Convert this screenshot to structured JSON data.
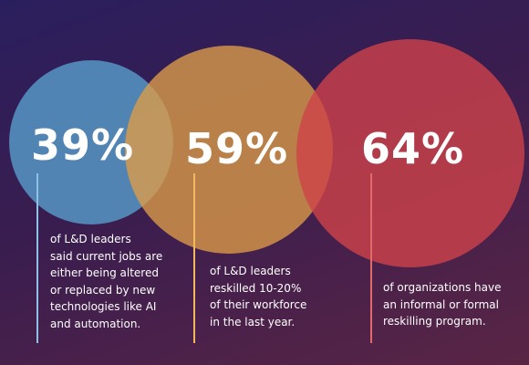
{
  "colors": {
    "blue": "#5696c4",
    "orange": "#de9c48",
    "red": "#ce424a"
  },
  "stats": [
    {
      "value": "39%",
      "lines": [
        "of L&D leaders",
        "said current jobs are",
        "either being altered",
        "or replaced by new",
        "technologies like AI",
        "and automation."
      ]
    },
    {
      "value": "59%",
      "lines": [
        "of L&D leaders",
        "reskilled 10-20%",
        "of their workforce",
        "in the last year."
      ]
    },
    {
      "value": "64%",
      "lines": [
        "of organizations have",
        "an informal or formal",
        "reskilling program."
      ]
    }
  ]
}
